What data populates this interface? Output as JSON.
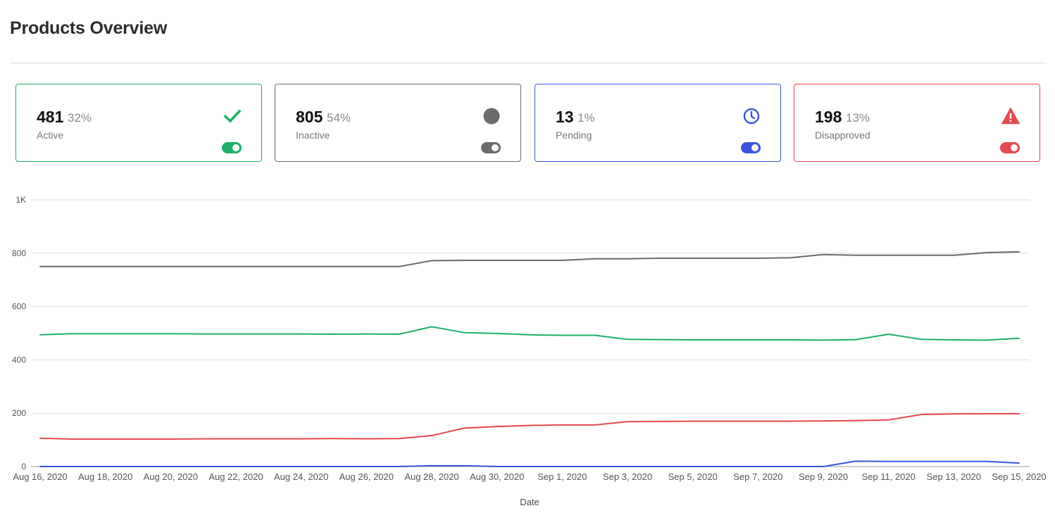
{
  "page": {
    "title": "Products Overview"
  },
  "cards": [
    {
      "count": "481",
      "percent": "32%",
      "label": "Active",
      "color": "#1db067",
      "icon": "check-icon"
    },
    {
      "count": "805",
      "percent": "54%",
      "label": "Inactive",
      "color": "#6b6b6b",
      "icon": "circle-icon"
    },
    {
      "count": "13",
      "percent": "1%",
      "label": "Pending",
      "color": "#3a55e0",
      "icon": "clock-icon"
    },
    {
      "count": "198",
      "percent": "13%",
      "label": "Disapproved",
      "color": "#e5484d",
      "icon": "warning-icon"
    }
  ],
  "chart_data": {
    "type": "line",
    "xlabel": "Date",
    "ylabel": "",
    "ylim": [
      0,
      1000
    ],
    "yticks": [
      0,
      200,
      400,
      600,
      800,
      1000
    ],
    "ytick_labels": [
      "0",
      "200",
      "400",
      "600",
      "800",
      "1K"
    ],
    "grid": true,
    "legend": "none",
    "x": [
      "2020-08-16",
      "2020-08-17",
      "2020-08-18",
      "2020-08-19",
      "2020-08-20",
      "2020-08-21",
      "2020-08-22",
      "2020-08-23",
      "2020-08-24",
      "2020-08-25",
      "2020-08-26",
      "2020-08-27",
      "2020-08-28",
      "2020-08-29",
      "2020-08-30",
      "2020-08-31",
      "2020-09-01",
      "2020-09-02",
      "2020-09-03",
      "2020-09-04",
      "2020-09-05",
      "2020-09-06",
      "2020-09-07",
      "2020-09-08",
      "2020-09-09",
      "2020-09-10",
      "2020-09-11",
      "2020-09-12",
      "2020-09-13",
      "2020-09-14",
      "2020-09-15"
    ],
    "x_tick_labels": [
      "Aug 16, 2020",
      "Aug 18, 2020",
      "Aug 20, 2020",
      "Aug 22, 2020",
      "Aug 24, 2020",
      "Aug 26, 2020",
      "Aug 28, 2020",
      "Aug 30, 2020",
      "Sep 1, 2020",
      "Sep 3, 2020",
      "Sep 5, 2020",
      "Sep 7, 2020",
      "Sep 9, 2020",
      "Sep 11, 2020",
      "Sep 13, 2020",
      "Sep 15, 2020"
    ],
    "series": [
      {
        "color": "#6b6b6b",
        "values": [
          750,
          750,
          750,
          750,
          750,
          750,
          750,
          750,
          750,
          750,
          750,
          750,
          772,
          773,
          773,
          773,
          773,
          779,
          779,
          781,
          781,
          781,
          781,
          783,
          795,
          792,
          792,
          792,
          792,
          802,
          805
        ]
      },
      {
        "color": "#1db067",
        "values": [
          494,
          498,
          498,
          498,
          498,
          497,
          497,
          497,
          497,
          496,
          497,
          496,
          524,
          502,
          499,
          494,
          492,
          492,
          477,
          476,
          475,
          475,
          475,
          475,
          474,
          476,
          496,
          477,
          475,
          474,
          481
        ]
      },
      {
        "color": "#e5484d",
        "values": [
          106,
          103,
          103,
          103,
          103,
          104,
          104,
          104,
          104,
          105,
          104,
          105,
          116,
          144,
          150,
          154,
          156,
          156,
          168,
          169,
          170,
          170,
          170,
          170,
          171,
          172,
          175,
          195,
          197,
          198,
          198
        ]
      },
      {
        "color": "#3a55e0",
        "values": [
          0,
          0,
          0,
          0,
          0,
          0,
          0,
          0,
          0,
          0,
          0,
          0,
          3,
          3,
          0,
          0,
          0,
          0,
          0,
          0,
          0,
          0,
          0,
          0,
          0,
          20,
          19,
          19,
          19,
          19,
          13
        ]
      }
    ]
  }
}
